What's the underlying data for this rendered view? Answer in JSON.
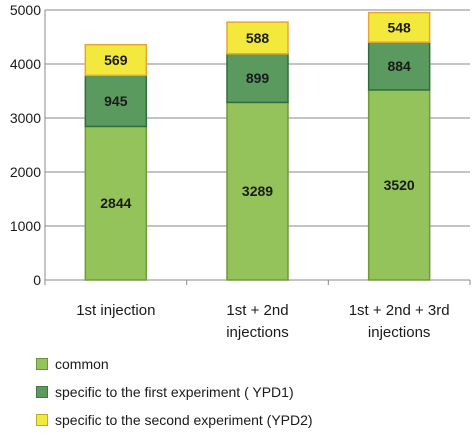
{
  "chart_data": {
    "type": "bar",
    "stacked": true,
    "categories": [
      "1st injection",
      "1st + 2nd injections",
      "1st + 2nd + 3rd injections"
    ],
    "category_lines": [
      [
        "1st injection"
      ],
      [
        "1st + 2nd",
        "injections"
      ],
      [
        "1st + 2nd + 3rd",
        "injections"
      ]
    ],
    "series": [
      {
        "name": "common",
        "values": [
          2844,
          3289,
          3520
        ],
        "color": "#93c35a",
        "edge": "#6d9a3a"
      },
      {
        "name": "specific to the first experiment ( YPD1)",
        "values": [
          945,
          899,
          884
        ],
        "color": "#5a9a5f",
        "edge": "#2e6e3a"
      },
      {
        "name": "specific to the second experiment (YPD2)",
        "values": [
          569,
          588,
          548
        ],
        "color": "#f2e93c",
        "edge": "#e4a63a"
      }
    ],
    "ylim": [
      0,
      5000
    ],
    "yticks": [
      0,
      1000,
      2000,
      3000,
      4000,
      5000
    ],
    "grid": true,
    "legend_position": "bottom-left",
    "xlabel": "",
    "ylabel": ""
  }
}
